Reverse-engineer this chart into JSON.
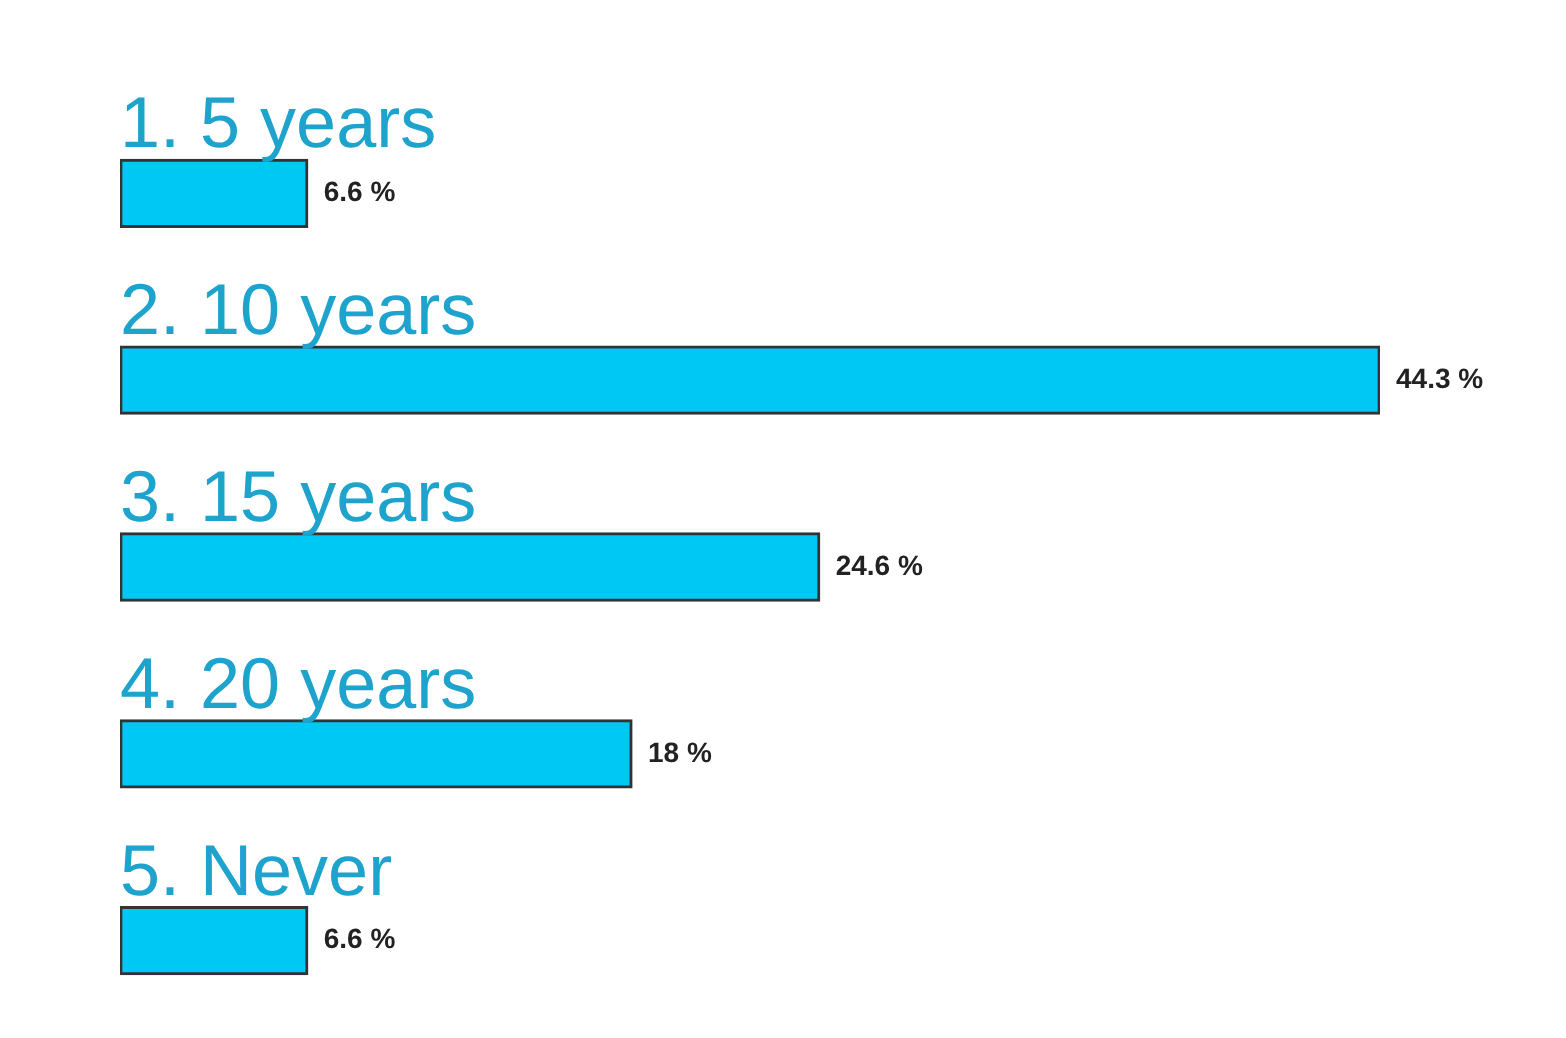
{
  "chart_data": {
    "type": "bar",
    "orientation": "horizontal",
    "categories": [
      "1. 5 years",
      "2. 10 years",
      "3. 15 years",
      "4. 20 years",
      "5. Never"
    ],
    "values": [
      6.6,
      44.3,
      24.6,
      18,
      6.6
    ],
    "value_labels": [
      "6.6 %",
      "44.3 %",
      "24.6 %",
      "18 %",
      "6.6 %"
    ],
    "color": "#00c8f5"
  }
}
